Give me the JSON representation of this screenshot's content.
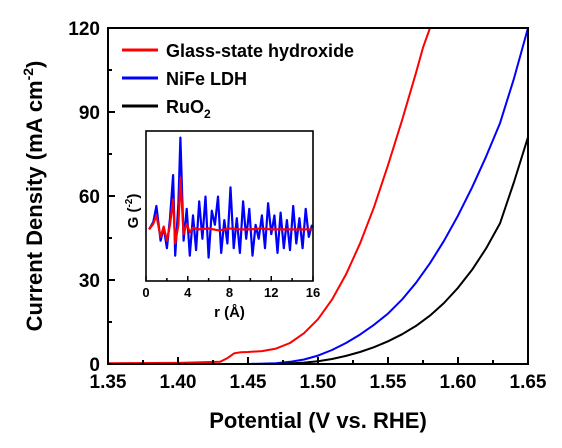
{
  "chart_data": [
    {
      "type": "line",
      "title": "",
      "xlabel": "Potential (V vs. RHE)",
      "ylabel": "Current Density (mA cm⁻²)",
      "xlim": [
        1.35,
        1.65
      ],
      "ylim": [
        0,
        120
      ],
      "xticks": [
        1.35,
        1.4,
        1.45,
        1.5,
        1.55,
        1.6,
        1.65
      ],
      "yticks": [
        0,
        30,
        60,
        90,
        120
      ],
      "xtick_labels": [
        "1.35",
        "1.40",
        "1.45",
        "1.50",
        "1.55",
        "1.60",
        "1.65"
      ],
      "ytick_labels": [
        "0",
        "30",
        "60",
        "90",
        "120"
      ],
      "legend_position": "top-left",
      "grid": false,
      "series": [
        {
          "name": "Glass-state hydroxide",
          "color": "#ff0000",
          "x": [
            1.35,
            1.4,
            1.43,
            1.435,
            1.44,
            1.445,
            1.45,
            1.46,
            1.47,
            1.48,
            1.49,
            1.5,
            1.51,
            1.52,
            1.53,
            1.54,
            1.55,
            1.56,
            1.57,
            1.575,
            1.58
          ],
          "y": [
            0.3,
            0.4,
            0.8,
            2.0,
            3.8,
            4.2,
            4.3,
            4.6,
            5.5,
            7.5,
            11,
            16,
            23,
            32,
            43,
            56,
            71,
            87,
            104,
            113,
            120
          ]
        },
        {
          "name": "NiFe LDH",
          "color": "#0000ff",
          "x": [
            1.35,
            1.45,
            1.47,
            1.48,
            1.49,
            1.5,
            1.51,
            1.52,
            1.53,
            1.54,
            1.55,
            1.56,
            1.57,
            1.58,
            1.59,
            1.6,
            1.61,
            1.62,
            1.63,
            1.64,
            1.65
          ],
          "y": [
            0,
            0,
            0.3,
            0.8,
            1.6,
            3.0,
            5.0,
            7.5,
            10.5,
            14,
            18,
            23,
            29,
            36,
            44,
            53,
            63,
            74,
            86,
            102,
            120
          ]
        },
        {
          "name": "RuO₂",
          "color": "#000000",
          "x": [
            1.35,
            1.47,
            1.48,
            1.49,
            1.5,
            1.51,
            1.52,
            1.53,
            1.54,
            1.55,
            1.56,
            1.57,
            1.58,
            1.59,
            1.6,
            1.61,
            1.62,
            1.63,
            1.64,
            1.65
          ],
          "y": [
            0,
            0,
            0.2,
            0.5,
            1.0,
            1.8,
            2.9,
            4.3,
            6.0,
            8.1,
            10.6,
            13.6,
            17.3,
            21.8,
            27.2,
            33.6,
            41.2,
            50.2,
            65,
            81
          ]
        }
      ]
    },
    {
      "type": "line",
      "title": "",
      "xlabel": "r (Å)",
      "ylabel": "G (⁻²)",
      "xlim": [
        0,
        16
      ],
      "ylim": [
        -0.55,
        1.05
      ],
      "xticks": [
        0,
        4,
        8,
        12,
        16
      ],
      "xtick_labels": [
        "0",
        "4",
        "8",
        "12",
        "16"
      ],
      "series": [
        {
          "name": "NiFe LDH",
          "color": "#0000ff",
          "x": [
            0.3,
            0.7,
            1.0,
            1.4,
            1.7,
            2.0,
            2.3,
            2.6,
            2.8,
            3.1,
            3.3,
            3.6,
            3.9,
            4.2,
            4.5,
            4.8,
            5.1,
            5.4,
            5.7,
            6.0,
            6.3,
            6.6,
            6.9,
            7.2,
            7.5,
            7.8,
            8.1,
            8.4,
            8.7,
            9.0,
            9.3,
            9.6,
            9.9,
            10.2,
            10.5,
            10.8,
            11.1,
            11.4,
            11.7,
            12.0,
            12.3,
            12.6,
            12.9,
            13.2,
            13.5,
            13.8,
            14.1,
            14.4,
            14.7,
            15.0,
            15.3,
            15.6,
            15.9
          ],
          "y": [
            0.0,
            0.08,
            0.25,
            -0.12,
            0.02,
            -0.2,
            0.12,
            0.58,
            -0.28,
            0.28,
            0.98,
            -0.12,
            0.22,
            -0.28,
            0.15,
            -0.22,
            0.3,
            -0.1,
            0.35,
            -0.3,
            0.2,
            0.05,
            0.35,
            -0.25,
            0.1,
            -0.15,
            0.45,
            -0.2,
            0.12,
            -0.25,
            0.3,
            -0.1,
            0.22,
            -0.28,
            0.05,
            -0.1,
            0.15,
            -0.2,
            0.28,
            -0.05,
            0.15,
            -0.25,
            0.18,
            -0.2,
            0.1,
            -0.22,
            0.25,
            -0.15,
            0.12,
            -0.2,
            0.22,
            -0.08,
            0.05
          ]
        },
        {
          "name": "Glass-state hydroxide",
          "color": "#ff0000",
          "x": [
            0.3,
            0.7,
            1.0,
            1.4,
            1.7,
            2.0,
            2.3,
            2.6,
            2.8,
            3.1,
            3.3,
            3.6,
            3.9,
            4.2,
            4.5,
            5.0,
            6.0,
            7.0,
            8.0,
            9.0,
            10.0,
            11.0,
            12.0,
            13.0,
            14.0,
            15.0,
            15.9
          ],
          "y": [
            0.0,
            0.06,
            0.15,
            -0.08,
            0.03,
            -0.12,
            0.05,
            0.32,
            -0.15,
            0.05,
            0.55,
            -0.05,
            0.06,
            -0.03,
            0.02,
            0.0,
            0.01,
            -0.01,
            0.01,
            0.0,
            0.0,
            0.01,
            0.0,
            0.0,
            0.0,
            0.0,
            0.0
          ]
        }
      ]
    }
  ],
  "main_ylabel_parts": {
    "before": "Current Density (mA cm",
    "sup": "-2",
    "after": ")"
  },
  "legend": [
    {
      "label_main": "Glass-state hydroxide",
      "label_sub": "",
      "color": "#ff0000"
    },
    {
      "label_main": "NiFe LDH",
      "label_sub": "",
      "color": "#0000ff"
    },
    {
      "label_main": "RuO",
      "label_sub": "2",
      "color": "#000000"
    }
  ],
  "inset_ylabel_parts": {
    "before": "G (",
    "sup": "-2",
    "after": ")"
  }
}
